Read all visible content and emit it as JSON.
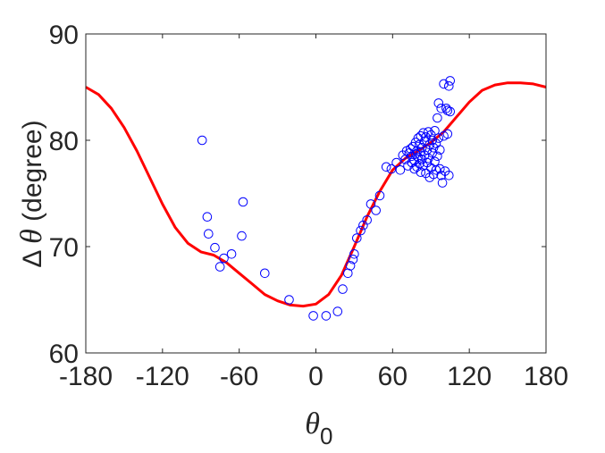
{
  "chart_data": {
    "type": "scatter",
    "xlim": [
      -180,
      180
    ],
    "ylim": [
      60,
      90
    ],
    "x_ticks": [
      -180,
      -120,
      -60,
      0,
      60,
      120,
      180
    ],
    "y_ticks": [
      60,
      70,
      80,
      90
    ],
    "x_tick_labels": [
      "-180",
      "-120",
      "-60",
      "0",
      "60",
      "120",
      "180"
    ],
    "y_tick_labels": [
      "60",
      "70",
      "80",
      "90"
    ],
    "xlabel": {
      "symbol": "θ",
      "subscript": "0"
    },
    "ylabel": {
      "prefix": "Δ ",
      "symbol": "θ",
      "suffix": " (degree)"
    },
    "grid": false,
    "box": true,
    "series": [
      {
        "kind": "scatter",
        "marker": "open-circle",
        "color": "#0000ff",
        "points": [
          [
            -89,
            80.0
          ],
          [
            -85,
            72.8
          ],
          [
            -84,
            71.2
          ],
          [
            -79,
            69.9
          ],
          [
            -75,
            68.1
          ],
          [
            -72,
            68.9
          ],
          [
            -66,
            69.3
          ],
          [
            -58,
            71.0
          ],
          [
            -57,
            74.2
          ],
          [
            -40,
            67.5
          ],
          [
            -21,
            65.0
          ],
          [
            -2,
            63.5
          ],
          [
            8,
            63.5
          ],
          [
            17,
            63.9
          ],
          [
            21,
            66.0
          ],
          [
            25,
            67.5
          ],
          [
            27,
            68.2
          ],
          [
            29,
            68.8
          ],
          [
            30,
            69.3
          ],
          [
            32,
            70.8
          ],
          [
            35,
            71.5
          ],
          [
            37,
            72.0
          ],
          [
            40,
            72.5
          ],
          [
            43,
            74.0
          ],
          [
            47,
            73.4
          ],
          [
            50,
            74.8
          ],
          [
            55,
            77.5
          ],
          [
            59,
            77.3
          ],
          [
            63,
            77.9
          ],
          [
            66,
            77.2
          ],
          [
            68,
            78.6
          ],
          [
            70,
            78.2
          ],
          [
            71,
            79.0
          ],
          [
            72,
            77.6
          ],
          [
            73,
            78.8
          ],
          [
            74,
            79.2
          ],
          [
            75,
            78.5
          ],
          [
            75,
            77.9
          ],
          [
            76,
            79.4
          ],
          [
            77,
            78.1
          ],
          [
            77,
            77.3
          ],
          [
            78,
            79.8
          ],
          [
            78,
            78.7
          ],
          [
            79,
            79.0
          ],
          [
            79,
            77.5
          ],
          [
            80,
            80.2
          ],
          [
            80,
            78.4
          ],
          [
            81,
            79.6
          ],
          [
            81,
            77.8
          ],
          [
            82,
            80.4
          ],
          [
            82,
            78.9
          ],
          [
            82,
            77.0
          ],
          [
            83,
            79.3
          ],
          [
            83,
            78.2
          ],
          [
            84,
            80.7
          ],
          [
            84,
            77.6
          ],
          [
            85,
            79.9
          ],
          [
            85,
            78.6
          ],
          [
            86,
            76.9
          ],
          [
            86,
            80.3
          ],
          [
            87,
            79.1
          ],
          [
            87,
            77.9
          ],
          [
            88,
            80.8
          ],
          [
            88,
            78.3
          ],
          [
            89,
            76.5
          ],
          [
            89,
            79.6
          ],
          [
            90,
            80.5
          ],
          [
            90,
            77.4
          ],
          [
            91,
            78.8
          ],
          [
            91,
            80.0
          ],
          [
            92,
            76.8
          ],
          [
            92,
            79.3
          ],
          [
            93,
            80.9
          ],
          [
            93,
            78.0
          ],
          [
            94,
            77.2
          ],
          [
            94,
            79.7
          ],
          [
            95,
            82.1
          ],
          [
            95,
            78.5
          ],
          [
            96,
            83.5
          ],
          [
            96,
            80.2
          ],
          [
            97,
            77.3
          ],
          [
            97,
            79.1
          ],
          [
            98,
            76.7
          ],
          [
            98,
            83.0
          ],
          [
            99,
            76.0
          ],
          [
            100,
            80.4
          ],
          [
            100,
            85.3
          ],
          [
            101,
            77.1
          ],
          [
            102,
            83.0
          ],
          [
            103,
            82.8
          ],
          [
            103,
            80.6
          ],
          [
            104,
            85.1
          ],
          [
            104,
            76.7
          ],
          [
            105,
            85.6
          ],
          [
            105,
            82.7
          ]
        ]
      },
      {
        "kind": "line",
        "color": "#ff0000",
        "points": [
          [
            -180,
            85.0
          ],
          [
            -170,
            84.3
          ],
          [
            -160,
            83.0
          ],
          [
            -150,
            81.2
          ],
          [
            -140,
            79.0
          ],
          [
            -130,
            76.5
          ],
          [
            -120,
            74.0
          ],
          [
            -110,
            71.8
          ],
          [
            -100,
            70.3
          ],
          [
            -90,
            69.5
          ],
          [
            -80,
            69.2
          ],
          [
            -70,
            68.5
          ],
          [
            -60,
            67.5
          ],
          [
            -50,
            66.5
          ],
          [
            -40,
            65.5
          ],
          [
            -30,
            64.9
          ],
          [
            -20,
            64.5
          ],
          [
            -10,
            64.4
          ],
          [
            0,
            64.6
          ],
          [
            10,
            65.5
          ],
          [
            20,
            67.3
          ],
          [
            30,
            70.0
          ],
          [
            40,
            72.8
          ],
          [
            50,
            75.2
          ],
          [
            60,
            77.2
          ],
          [
            70,
            78.3
          ],
          [
            80,
            79.0
          ],
          [
            90,
            79.8
          ],
          [
            100,
            80.8
          ],
          [
            110,
            82.2
          ],
          [
            120,
            83.6
          ],
          [
            130,
            84.7
          ],
          [
            140,
            85.2
          ],
          [
            150,
            85.4
          ],
          [
            160,
            85.4
          ],
          [
            170,
            85.3
          ],
          [
            180,
            85.0
          ]
        ]
      }
    ]
  }
}
